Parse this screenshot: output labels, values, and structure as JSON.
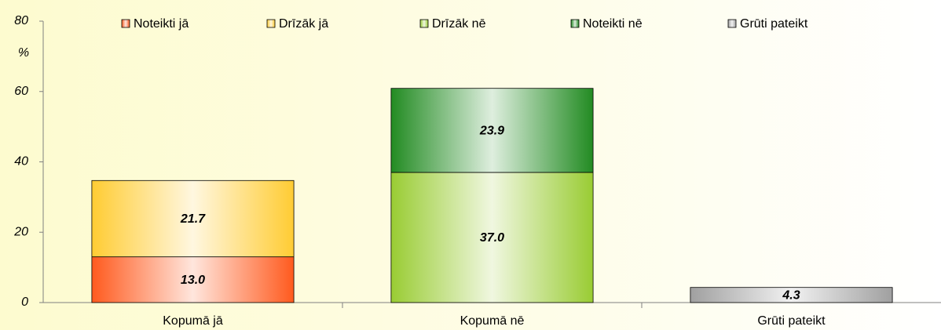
{
  "chart_data": {
    "type": "stacked_bar",
    "y_label": "%",
    "categories": [
      "Kopumā jā",
      "Kopumā nē",
      "Grūti pateikt"
    ],
    "series": [
      {
        "name": "Noteikti jā",
        "color": "#ff5a1e",
        "values": [
          13.0,
          null,
          null
        ],
        "value_labels": [
          "13.0",
          null,
          null
        ]
      },
      {
        "name": "Drīzāk jā",
        "color": "#ffcc33",
        "values": [
          21.7,
          null,
          null
        ],
        "value_labels": [
          "21.7",
          null,
          null
        ]
      },
      {
        "name": "Drīzāk nē",
        "color": "#99cc33",
        "values": [
          null,
          37.0,
          null
        ],
        "value_labels": [
          null,
          "37.0",
          null
        ]
      },
      {
        "name": "Noteikti nē",
        "color": "#228b22",
        "values": [
          null,
          23.9,
          null
        ],
        "value_labels": [
          null,
          "23.9",
          null
        ]
      },
      {
        "name": "Grūti pateikt",
        "color": "#a0a0a0",
        "values": [
          null,
          null,
          4.3
        ],
        "value_labels": [
          null,
          null,
          "4.3"
        ]
      }
    ],
    "ylim": [
      0,
      80
    ],
    "yticks": [
      0,
      20,
      40,
      60,
      80
    ],
    "grid": false,
    "legend": "top"
  }
}
